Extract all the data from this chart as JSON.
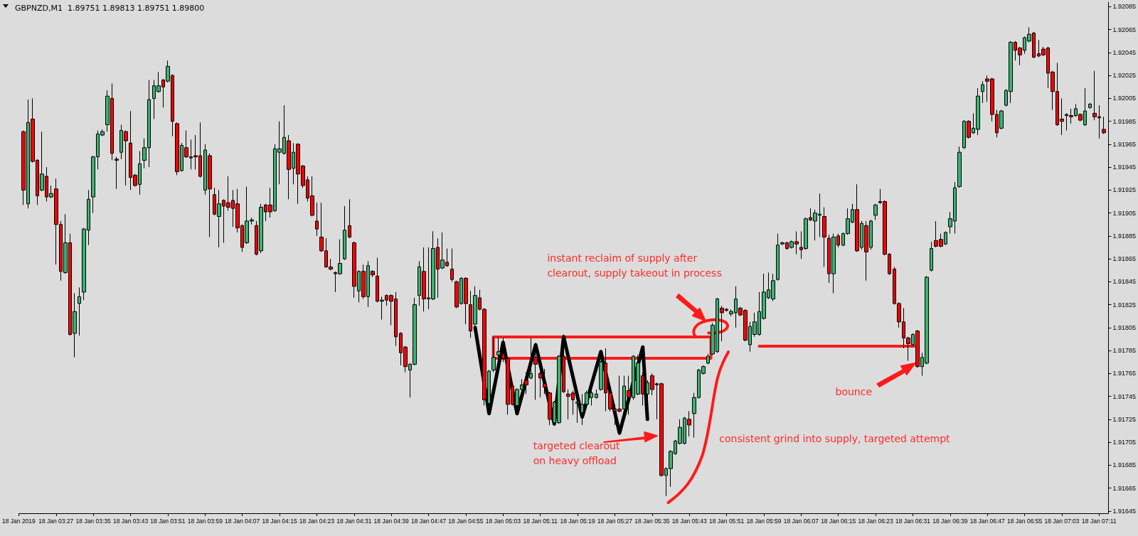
{
  "chart_data": {
    "type": "candlestick",
    "title": "GBPNZD,M1  1.89751 1.89813 1.89751 1.89800",
    "colors": [
      "#ff0000",
      "#3cb371",
      "#ff0000",
      "#ff0000",
      "#3cb371",
      "#ff0000",
      "#3cb371",
      "#ff0000",
      "#ff0000",
      "#3cb371",
      "#ff0000",
      "#3cb371",
      "#3cb371",
      "#3cb371",
      "#3cb371",
      "#3cb371",
      "#3cb371",
      "#3cb371",
      "#3cb371",
      "#ff0000",
      "#ff0000",
      "#3cb371",
      "#ff0000",
      "#ff0000",
      "#ff0000",
      "#3cb371",
      "#3cb371",
      "#3cb371",
      "#3cb371",
      "#3cb371",
      "#ff0000",
      "#3cb371",
      "#ff0000",
      "#ff0000",
      "#3cb371",
      "#ff0000",
      "#ff0000",
      "#ff0000",
      "#ff0000",
      "#3cb371",
      "#ff0000",
      "#ff0000",
      "#3cb371",
      "#ff0000",
      "#ff0000",
      "#ff0000",
      "#ff0000",
      "#ff0000",
      "#3cb371",
      "#3cb371",
      "#ff0000",
      "#3cb371",
      "#ff0000",
      "#ff0000",
      "#3cb371",
      "#3cb371",
      "#3cb371",
      "#ff0000",
      "#3cb371",
      "#ff0000",
      "#ff0000",
      "#ff0000",
      "#ff0000",
      "#ff0000",
      "#ff0000",
      "#ff0000",
      "#ff0000",
      "#ff0000",
      "#3cb371",
      "#3cb371",
      "#ff0000",
      "#ff0000",
      "#3cb371",
      "#ff0000",
      "#3cb371",
      "#ff0000",
      "#ff0000",
      "#3cb371",
      "#ff0000",
      "#ff0000",
      "#ff0000",
      "#ff0000",
      "#ff0000",
      "#3cb371",
      "#3cb371",
      "#3cb371",
      "#ff0000",
      "#3cb371",
      "#3cb371",
      "#ff0000",
      "#3cb371",
      "#ff0000",
      "#ff0000",
      "#ff0000",
      "#3cb371",
      "#ff0000",
      "#ff0000",
      "#3cb371",
      "#ff0000",
      "#ff0000",
      "#3cb371",
      "#3cb371",
      "#3cb371",
      "#ff0000",
      "#ff0000",
      "#ff0000",
      "#3cb371",
      "#3cb371",
      "#ff0000",
      "#3cb371",
      "#ff0000",
      "#ff0000",
      "#ff0000",
      "#ff0000",
      "#3cb371",
      "#3cb371",
      "#ff0000",
      "#ff0000",
      "#ff0000",
      "#3cb371",
      "#3cb371",
      "#3cb371",
      "#3cb371",
      "#3cb371",
      "#3cb371",
      "#ff0000",
      "#ff0000",
      "#ff0000",
      "#ff0000",
      "#3cb371",
      "#ff0000",
      "#3cb371",
      "#3cb371",
      "#ff0000",
      "#3cb371",
      "#ff0000",
      "#ff0000",
      "#ff0000",
      "#3cb371",
      "#3cb371",
      "#3cb371",
      "#3cb371",
      "#3cb371",
      "#ff0000",
      "#3cb371",
      "#3cb371",
      "#3cb371",
      "#3cb371",
      "#3cb371",
      "#3cb371",
      "#ff0000",
      "#ff0000",
      "#3cb371",
      "#3cb371",
      "#ff0000",
      "#ff0000",
      "#3cb371",
      "#3cb371",
      "#3cb371",
      "#3cb371",
      "#3cb371",
      "#3cb371",
      "#3cb371",
      "#3cb371",
      "#ff0000",
      "#3cb371",
      "#ff0000",
      "#ff0000",
      "#3cb371",
      "#ff0000",
      "#3cb371",
      "#3cb371",
      "#ff0000",
      "#ff0000",
      "#3cb371",
      "#ff0000",
      "#3cb371",
      "#3cb371",
      "#3cb371",
      "#ff0000",
      "#3cb371",
      "#ff0000",
      "#3cb371",
      "#3cb371",
      "#ff0000",
      "#ff0000",
      "#ff0000",
      "#ff0000",
      "#ff0000",
      "#ff0000",
      "#ff0000",
      "#3cb371",
      "#ff0000",
      "#3cb371",
      "#3cb371",
      "#3cb371",
      "#ff0000",
      "#ff0000",
      "#3cb371",
      "#3cb371",
      "#3cb371",
      "#3cb371",
      "#3cb371",
      "#ff0000",
      "#3cb371",
      "#3cb371",
      "#3cb371",
      "#ff0000",
      "#ff0000",
      "#ff0000",
      "#3cb371",
      "#3cb371",
      "#3cb371",
      "#ff0000",
      "#ff0000",
      "#3cb371",
      "#3cb371",
      "#ff0000",
      "#ff0000",
      "#ff0000",
      "#ff0000",
      "#ff0000",
      "#ff0000",
      "#ff0000",
      "#ff0000",
      "#ff0000",
      "#3cb371",
      "#ff0000",
      "#3cb371",
      "#3cb371",
      "#ff0000",
      "#ff0000",
      "#ff0000"
    ],
    "xlim": [
      "2019-01-18T03:19",
      "2019-01-18T07:13"
    ],
    "ylim": [
      1.91643,
      1.92089
    ],
    "yticks": [
      1.92085,
      1.92065,
      1.92045,
      1.92025,
      1.92005,
      1.91985,
      1.91965,
      1.91945,
      1.91925,
      1.91905,
      1.91885,
      1.91865,
      1.91845,
      1.91825,
      1.91805,
      1.91785,
      1.91765,
      1.91745,
      1.91725,
      1.91705,
      1.91685,
      1.91665,
      1.91645
    ],
    "xticks": [
      {
        "value": "2019-01-18T03:19",
        "label": "18 Jan 2019"
      },
      {
        "value": "2019-01-18T03:27",
        "label": "18 Jan 03:27"
      },
      {
        "value": "2019-01-18T03:35",
        "label": "18 Jan 03:35"
      },
      {
        "value": "2019-01-18T03:43",
        "label": "18 Jan 03:43"
      },
      {
        "value": "2019-01-18T03:51",
        "label": "18 Jan 03:51"
      },
      {
        "value": "2019-01-18T03:59",
        "label": "18 Jan 03:59"
      },
      {
        "value": "2019-01-18T04:07",
        "label": "18 Jan 04:07"
      },
      {
        "value": "2019-01-18T04:15",
        "label": "18 Jan 04:15"
      },
      {
        "value": "2019-01-18T04:23",
        "label": "18 Jan 04:23"
      },
      {
        "value": "2019-01-18T04:31",
        "label": "18 Jan 04:31"
      },
      {
        "value": "2019-01-18T04:39",
        "label": "18 Jan 04:39"
      },
      {
        "value": "2019-01-18T04:47",
        "label": "18 Jan 04:47"
      },
      {
        "value": "2019-01-18T04:55",
        "label": "18 Jan 04:55"
      },
      {
        "value": "2019-01-18T05:03",
        "label": "18 Jan 05:03"
      },
      {
        "value": "2019-01-18T05:11",
        "label": "18 Jan 05:11"
      },
      {
        "value": "2019-01-18T05:19",
        "label": "18 Jan 05:19"
      },
      {
        "value": "2019-01-18T05:27",
        "label": "18 Jan 05:27"
      },
      {
        "value": "2019-01-18T05:35",
        "label": "18 Jan 05:35"
      },
      {
        "value": "2019-01-18T05:43",
        "label": "18 Jan 05:43"
      },
      {
        "value": "2019-01-18T05:51",
        "label": "18 Jan 05:51"
      },
      {
        "value": "2019-01-18T05:59",
        "label": "18 Jan 05:59"
      },
      {
        "value": "2019-01-18T06:07",
        "label": "18 Jan 06:07"
      },
      {
        "value": "2019-01-18T06:15",
        "label": "18 Jan 06:15"
      },
      {
        "value": "2019-01-18T06:23",
        "label": "18 Jan 06:23"
      },
      {
        "value": "2019-01-18T06:31",
        "label": "18 Jan 06:31"
      },
      {
        "value": "2019-01-18T06:39",
        "label": "18 Jan 06:39"
      },
      {
        "value": "2019-01-18T06:47",
        "label": "18 Jan 06:47"
      },
      {
        "value": "2019-01-18T06:55",
        "label": "18 Jan 06:55"
      },
      {
        "value": "2019-01-18T07:03",
        "label": "18 Jan 07:03"
      },
      {
        "value": "2019-01-18T07:11",
        "label": "18 Jan 07:11"
      }
    ],
    "series": [
      {
        "type": "line",
        "color": "#000000",
        "line_style": "solid",
        "x": [
          "2019-01-18T04:57",
          "2019-01-18T05:00",
          "2019-01-18T05:03",
          "2019-01-18T05:06",
          "2019-01-18T05:10",
          "2019-01-18T05:14",
          "2019-01-18T05:16",
          "2019-01-18T05:20",
          "2019-01-18T05:24",
          "2019-01-18T05:28",
          "2019-01-18T05:33",
          "2019-01-18T05:34"
        ],
        "values": [
          1.91805,
          1.9173,
          1.91792,
          1.9173,
          1.9179,
          1.91721,
          1.91797,
          1.91727,
          1.91784,
          1.91713,
          1.91788,
          1.91725
        ]
      }
    ],
    "annotations": [
      "instant reclaim of supply after\nclearout, supply takeout in process",
      "targeted clearout\non heavy offload",
      "consistent grind into supply, targeted attempt",
      "bounce"
    ],
    "x": [
      "2019-01-18T03:20",
      "2019-01-18T03:21",
      "2019-01-18T03:22",
      "2019-01-18T03:23",
      "2019-01-18T03:24",
      "2019-01-18T03:25",
      "2019-01-18T03:26",
      "2019-01-18T03:27",
      "2019-01-18T03:28",
      "2019-01-18T03:29",
      "2019-01-18T03:30",
      "2019-01-18T03:31",
      "2019-01-18T03:32",
      "2019-01-18T03:33",
      "2019-01-18T03:34",
      "2019-01-18T03:35",
      "2019-01-18T03:36",
      "2019-01-18T03:37",
      "2019-01-18T03:38",
      "2019-01-18T03:39",
      "2019-01-18T03:40",
      "2019-01-18T03:41",
      "2019-01-18T03:42",
      "2019-01-18T03:43",
      "2019-01-18T03:44",
      "2019-01-18T03:45",
      "2019-01-18T03:46",
      "2019-01-18T03:47",
      "2019-01-18T03:48",
      "2019-01-18T03:49",
      "2019-01-18T03:50",
      "2019-01-18T03:51",
      "2019-01-18T03:52",
      "2019-01-18T03:53",
      "2019-01-18T03:54",
      "2019-01-18T03:55",
      "2019-01-18T03:56",
      "2019-01-18T03:57",
      "2019-01-18T03:58",
      "2019-01-18T03:59",
      "2019-01-18T04:00",
      "2019-01-18T04:01",
      "2019-01-18T04:02",
      "2019-01-18T04:03",
      "2019-01-18T04:04",
      "2019-01-18T04:05",
      "2019-01-18T04:06",
      "2019-01-18T04:07",
      "2019-01-18T04:08",
      "2019-01-18T04:09",
      "2019-01-18T04:10",
      "2019-01-18T04:11",
      "2019-01-18T04:12",
      "2019-01-18T04:13",
      "2019-01-18T04:14",
      "2019-01-18T04:15",
      "2019-01-18T04:16",
      "2019-01-18T04:17",
      "2019-01-18T04:18",
      "2019-01-18T04:19",
      "2019-01-18T04:20",
      "2019-01-18T04:21",
      "2019-01-18T04:22",
      "2019-01-18T04:23",
      "2019-01-18T04:24",
      "2019-01-18T04:25",
      "2019-01-18T04:26",
      "2019-01-18T04:27",
      "2019-01-18T04:28",
      "2019-01-18T04:29",
      "2019-01-18T04:30",
      "2019-01-18T04:31",
      "2019-01-18T04:32",
      "2019-01-18T04:33",
      "2019-01-18T04:34",
      "2019-01-18T04:35",
      "2019-01-18T04:36",
      "2019-01-18T04:37",
      "2019-01-18T04:38",
      "2019-01-18T04:39",
      "2019-01-18T04:40",
      "2019-01-18T04:41",
      "2019-01-18T04:42",
      "2019-01-18T04:43",
      "2019-01-18T04:44",
      "2019-01-18T04:45",
      "2019-01-18T04:46",
      "2019-01-18T04:47",
      "2019-01-18T04:48",
      "2019-01-18T04:49",
      "2019-01-18T04:50",
      "2019-01-18T04:51",
      "2019-01-18T04:52",
      "2019-01-18T04:53",
      "2019-01-18T04:54",
      "2019-01-18T04:55",
      "2019-01-18T04:56",
      "2019-01-18T04:57",
      "2019-01-18T04:58",
      "2019-01-18T04:59",
      "2019-01-18T05:00",
      "2019-01-18T05:01",
      "2019-01-18T05:02",
      "2019-01-18T05:03",
      "2019-01-18T05:04",
      "2019-01-18T05:05",
      "2019-01-18T05:06",
      "2019-01-18T05:07",
      "2019-01-18T05:08",
      "2019-01-18T05:09",
      "2019-01-18T05:10",
      "2019-01-18T05:11",
      "2019-01-18T05:12",
      "2019-01-18T05:13",
      "2019-01-18T05:14",
      "2019-01-18T05:15",
      "2019-01-18T05:16",
      "2019-01-18T05:17",
      "2019-01-18T05:18",
      "2019-01-18T05:19",
      "2019-01-18T05:20",
      "2019-01-18T05:21",
      "2019-01-18T05:22",
      "2019-01-18T05:23",
      "2019-01-18T05:24",
      "2019-01-18T05:25",
      "2019-01-18T05:26",
      "2019-01-18T05:27",
      "2019-01-18T05:28",
      "2019-01-18T05:29",
      "2019-01-18T05:30",
      "2019-01-18T05:31",
      "2019-01-18T05:32",
      "2019-01-18T05:33",
      "2019-01-18T05:34",
      "2019-01-18T05:35",
      "2019-01-18T05:36",
      "2019-01-18T05:37",
      "2019-01-18T05:38",
      "2019-01-18T05:39",
      "2019-01-18T05:40",
      "2019-01-18T05:41",
      "2019-01-18T05:42",
      "2019-01-18T05:43",
      "2019-01-18T05:44",
      "2019-01-18T05:45",
      "2019-01-18T05:46",
      "2019-01-18T05:47",
      "2019-01-18T05:48",
      "2019-01-18T05:49",
      "2019-01-18T05:50",
      "2019-01-18T05:51",
      "2019-01-18T05:52",
      "2019-01-18T05:53",
      "2019-01-18T05:54",
      "2019-01-18T05:55",
      "2019-01-18T05:56",
      "2019-01-18T05:57",
      "2019-01-18T05:58",
      "2019-01-18T05:59",
      "2019-01-18T06:00",
      "2019-01-18T06:01",
      "2019-01-18T06:02",
      "2019-01-18T06:03",
      "2019-01-18T06:04",
      "2019-01-18T06:05",
      "2019-01-18T06:06",
      "2019-01-18T06:07",
      "2019-01-18T06:08",
      "2019-01-18T06:09",
      "2019-01-18T06:10",
      "2019-01-18T06:11",
      "2019-01-18T06:12",
      "2019-01-18T06:13",
      "2019-01-18T06:14",
      "2019-01-18T06:15",
      "2019-01-18T06:16",
      "2019-01-18T06:17",
      "2019-01-18T06:18",
      "2019-01-18T06:19",
      "2019-01-18T06:20",
      "2019-01-18T06:21",
      "2019-01-18T06:22",
      "2019-01-18T06:23",
      "2019-01-18T06:24",
      "2019-01-18T06:25",
      "2019-01-18T06:26",
      "2019-01-18T06:27",
      "2019-01-18T06:28",
      "2019-01-18T06:29",
      "2019-01-18T06:30",
      "2019-01-18T06:31",
      "2019-01-18T06:32",
      "2019-01-18T06:33",
      "2019-01-18T06:34",
      "2019-01-18T06:35",
      "2019-01-18T06:36",
      "2019-01-18T06:37",
      "2019-01-18T06:38",
      "2019-01-18T06:39",
      "2019-01-18T06:40",
      "2019-01-18T06:41",
      "2019-01-18T06:42",
      "2019-01-18T06:43",
      "2019-01-18T06:44",
      "2019-01-18T06:45",
      "2019-01-18T06:46",
      "2019-01-18T06:47",
      "2019-01-18T06:48",
      "2019-01-18T06:49",
      "2019-01-18T06:50",
      "2019-01-18T06:51",
      "2019-01-18T06:52",
      "2019-01-18T06:53",
      "2019-01-18T06:54",
      "2019-01-18T06:55",
      "2019-01-18T06:56",
      "2019-01-18T06:57",
      "2019-01-18T06:58",
      "2019-01-18T06:59",
      "2019-01-18T07:00",
      "2019-01-18T07:01",
      "2019-01-18T07:02",
      "2019-01-18T07:03",
      "2019-01-18T07:04",
      "2019-01-18T07:05",
      "2019-01-18T07:06",
      "2019-01-18T07:07",
      "2019-01-18T07:08",
      "2019-01-18T07:09",
      "2019-01-18T07:10",
      "2019-01-18T07:11",
      "2019-01-18T07:12"
    ],
    "ohlc": [
      [
        1.91976,
        1.91977,
        1.91912,
        1.91925
      ],
      [
        1.91913,
        1.92004,
        1.91909,
        1.91984
      ],
      [
        1.91987,
        1.92005,
        1.91949,
        1.9195
      ],
      [
        1.91951,
        1.91952,
        1.91912,
        1.9192
      ],
      [
        1.91925,
        1.91976,
        1.91924,
        1.91939
      ],
      [
        1.91937,
        1.91945,
        1.91915,
        1.91919
      ],
      [
        1.91919,
        1.91929,
        1.91918,
        1.91922
      ],
      [
        1.91926,
        1.91935,
        1.9186,
        1.91895
      ],
      [
        1.91895,
        1.91898,
        1.91846,
        1.91854
      ],
      [
        1.91853,
        1.91904,
        1.91852,
        1.91879
      ],
      [
        1.91879,
        1.91887,
        1.91798,
        1.91799
      ],
      [
        1.918,
        1.91835,
        1.91779,
        1.91819
      ],
      [
        1.91826,
        1.9184,
        1.91798,
        1.91832
      ],
      [
        1.91836,
        1.91892,
        1.91829,
        1.91891
      ],
      [
        1.9189,
        1.91925,
        1.91877,
        1.91917
      ],
      [
        1.91919,
        1.91955,
        1.91905,
        1.91954
      ],
      [
        1.91954,
        1.91977,
        1.91943,
        1.91974
      ],
      [
        1.91973,
        1.91978,
        1.91972,
        1.91976
      ],
      [
        1.91982,
        1.92012,
        1.91976,
        1.92007
      ],
      [
        1.92005,
        1.92018,
        1.91951,
        1.91957
      ],
      [
        1.91952,
        1.91954,
        1.91926,
        1.91951
      ],
      [
        1.91958,
        1.91982,
        1.91952,
        1.91977
      ],
      [
        1.91976,
        1.91977,
        1.91929,
        1.91968
      ],
      [
        1.91966,
        1.91994,
        1.91925,
        1.91936
      ],
      [
        1.91938,
        1.91939,
        1.91928,
        1.91929
      ],
      [
        1.9193,
        1.91959,
        1.91921,
        1.91948
      ],
      [
        1.91951,
        1.9197,
        1.91944,
        1.91962
      ],
      [
        1.91962,
        1.92021,
        1.91945,
        1.92004
      ],
      [
        1.92005,
        1.92021,
        1.91987,
        1.92016
      ],
      [
        1.92011,
        1.92028,
        1.9201,
        1.92016
      ],
      [
        1.92021,
        1.92022,
        1.91997,
        1.92015
      ],
      [
        1.9202,
        1.92038,
        1.92019,
        1.92033
      ],
      [
        1.92025,
        1.92026,
        1.91972,
        1.91985
      ],
      [
        1.91983,
        1.91984,
        1.91938,
        1.91941
      ],
      [
        1.91942,
        1.91966,
        1.91941,
        1.91964
      ],
      [
        1.91962,
        1.91977,
        1.91953,
        1.91954
      ],
      [
        1.91954,
        1.91969,
        1.91943,
        1.91953
      ],
      [
        1.91955,
        1.91973,
        1.91943,
        1.91954
      ],
      [
        1.91955,
        1.91984,
        1.91936,
        1.91937
      ],
      [
        1.91925,
        1.91965,
        1.91921,
        1.9196
      ],
      [
        1.91955,
        1.91957,
        1.91884,
        1.91926
      ],
      [
        1.91921,
        1.91927,
        1.91903,
        1.91904
      ],
      [
        1.91902,
        1.91925,
        1.91875,
        1.91913
      ],
      [
        1.91916,
        1.91917,
        1.91879,
        1.91911
      ],
      [
        1.91914,
        1.91937,
        1.91907,
        1.9191
      ],
      [
        1.91916,
        1.91925,
        1.91893,
        1.91909
      ],
      [
        1.91913,
        1.91926,
        1.91888,
        1.91892
      ],
      [
        1.91894,
        1.91895,
        1.91871,
        1.91875
      ],
      [
        1.91879,
        1.91928,
        1.91878,
        1.91898
      ],
      [
        1.91898,
        1.91901,
        1.91895,
        1.91899
      ],
      [
        1.91894,
        1.91898,
        1.91868,
        1.91869
      ],
      [
        1.91872,
        1.91913,
        1.9187,
        1.9191
      ],
      [
        1.91912,
        1.91913,
        1.91898,
        1.91906
      ],
      [
        1.91912,
        1.91927,
        1.91901,
        1.91906
      ],
      [
        1.91907,
        1.91965,
        1.91906,
        1.91961
      ],
      [
        1.91958,
        1.91985,
        1.9193,
        1.91961
      ],
      [
        1.91957,
        1.91999,
        1.91956,
        1.91971
      ],
      [
        1.91968,
        1.91973,
        1.91917,
        1.91943
      ],
      [
        1.91944,
        1.91966,
        1.9193,
        1.91958
      ],
      [
        1.91965,
        1.91966,
        1.91913,
        1.91939
      ],
      [
        1.91946,
        1.91947,
        1.91927,
        1.91929
      ],
      [
        1.91934,
        1.91937,
        1.91915,
        1.91918
      ],
      [
        1.9192,
        1.91937,
        1.91902,
        1.91903
      ],
      [
        1.91898,
        1.91914,
        1.91885,
        1.91891
      ],
      [
        1.91884,
        1.91914,
        1.91871,
        1.91872
      ],
      [
        1.91872,
        1.91883,
        1.91857,
        1.91858
      ],
      [
        1.91858,
        1.91865,
        1.91855,
        1.91856
      ],
      [
        1.91853,
        1.91854,
        1.91836,
        1.91852
      ],
      [
        1.91852,
        1.91882,
        1.91851,
        1.91861
      ],
      [
        1.91865,
        1.91911,
        1.91864,
        1.9189
      ],
      [
        1.91894,
        1.91917,
        1.91883,
        1.91884
      ],
      [
        1.91879,
        1.9188,
        1.91831,
        1.91841
      ],
      [
        1.91837,
        1.91855,
        1.91827,
        1.91854
      ],
      [
        1.91854,
        1.9186,
        1.9183,
        1.91832
      ],
      [
        1.91832,
        1.91863,
        1.91823,
        1.91859
      ],
      [
        1.91854,
        1.91855,
        1.91849,
        1.91851
      ],
      [
        1.9185,
        1.91866,
        1.91827,
        1.91828
      ],
      [
        1.91828,
        1.91832,
        1.91812,
        1.91829
      ],
      [
        1.91833,
        1.91834,
        1.91824,
        1.91829
      ],
      [
        1.91833,
        1.91834,
        1.91807,
        1.91828
      ],
      [
        1.9183,
        1.91836,
        1.91789,
        1.91797
      ],
      [
        1.918,
        1.91801,
        1.91772,
        1.91783
      ],
      [
        1.91788,
        1.91789,
        1.91766,
        1.91771
      ],
      [
        1.91768,
        1.91774,
        1.91744,
        1.91773
      ],
      [
        1.91773,
        1.91831,
        1.91772,
        1.91825
      ],
      [
        1.91833,
        1.91863,
        1.91824,
        1.91858
      ],
      [
        1.91854,
        1.91875,
        1.91819,
        1.9183
      ],
      [
        1.9183,
        1.91875,
        1.91821,
        1.91831
      ],
      [
        1.9183,
        1.91889,
        1.91829,
        1.91874
      ],
      [
        1.91875,
        1.91883,
        1.91831,
        1.91856
      ],
      [
        1.91857,
        1.91888,
        1.91856,
        1.91864
      ],
      [
        1.91862,
        1.91874,
        1.91858,
        1.91859
      ],
      [
        1.91856,
        1.91874,
        1.91845,
        1.91847
      ],
      [
        1.91845,
        1.91846,
        1.91822,
        1.91823
      ],
      [
        1.91826,
        1.91849,
        1.91825,
        1.91848
      ],
      [
        1.91848,
        1.91849,
        1.91808,
        1.91826
      ],
      [
        1.91825,
        1.91837,
        1.91796,
        1.91802
      ],
      [
        1.91808,
        1.91841,
        1.91807,
        1.91833
      ],
      [
        1.91831,
        1.91838,
        1.9182,
        1.91821
      ],
      [
        1.91821,
        1.91822,
        1.91737,
        1.91742
      ],
      [
        1.91739,
        1.91768,
        1.91737,
        1.91767
      ],
      [
        1.91768,
        1.91797,
        1.91766,
        1.91779
      ],
      [
        1.91781,
        1.91797,
        1.91779,
        1.91784
      ],
      [
        1.91782,
        1.91796,
        1.91775,
        1.91778
      ],
      [
        1.91778,
        1.91779,
        1.91729,
        1.91738
      ],
      [
        1.91754,
        1.91755,
        1.91737,
        1.91738
      ],
      [
        1.91737,
        1.91752,
        1.91735,
        1.91751
      ],
      [
        1.91751,
        1.9176,
        1.91747,
        1.91755
      ],
      [
        1.91759,
        1.91766,
        1.91747,
        1.91755
      ],
      [
        1.91761,
        1.91796,
        1.9176,
        1.91765
      ],
      [
        1.91779,
        1.91784,
        1.91742,
        1.91773
      ],
      [
        1.91765,
        1.91775,
        1.91744,
        1.91761
      ],
      [
        1.91756,
        1.91769,
        1.91747,
        1.91753
      ],
      [
        1.91748,
        1.91749,
        1.9172,
        1.91725
      ],
      [
        1.91722,
        1.91741,
        1.91721,
        1.9174
      ],
      [
        1.91722,
        1.91781,
        1.91721,
        1.9178
      ],
      [
        1.9178,
        1.91799,
        1.91748,
        1.91749
      ],
      [
        1.91747,
        1.91751,
        1.91725,
        1.91745
      ],
      [
        1.91748,
        1.9175,
        1.91729,
        1.91742
      ],
      [
        1.91739,
        1.91744,
        1.91722,
        1.9174
      ],
      [
        1.91731,
        1.91747,
        1.9172,
        1.91738
      ],
      [
        1.91738,
        1.9175,
        1.91736,
        1.91748
      ],
      [
        1.91744,
        1.91751,
        1.91737,
        1.91748
      ],
      [
        1.91744,
        1.91751,
        1.91743,
        1.91747
      ],
      [
        1.91751,
        1.91776,
        1.9175,
        1.91775
      ],
      [
        1.91774,
        1.91787,
        1.91732,
        1.91748
      ],
      [
        1.91748,
        1.91751,
        1.91732,
        1.91734
      ],
      [
        1.91734,
        1.91738,
        1.9172,
        1.91732
      ],
      [
        1.91734,
        1.91763,
        1.91731,
        1.91732
      ],
      [
        1.91734,
        1.91763,
        1.91729,
        1.91754
      ],
      [
        1.9175,
        1.91763,
        1.91729,
        1.91744
      ],
      [
        1.91744,
        1.91781,
        1.91742,
        1.9178
      ],
      [
        1.91747,
        1.91781,
        1.91746,
        1.91774
      ],
      [
        1.91763,
        1.91766,
        1.91737,
        1.91747
      ],
      [
        1.91747,
        1.91759,
        1.91738,
        1.91757
      ],
      [
        1.91763,
        1.91765,
        1.91746,
        1.91751
      ],
      [
        1.91756,
        1.91757,
        1.91725,
        1.91755
      ],
      [
        1.91756,
        1.91757,
        1.91675,
        1.91676
      ],
      [
        1.91676,
        1.91683,
        1.91658,
        1.91682
      ],
      [
        1.91682,
        1.91698,
        1.91666,
        1.91697
      ],
      [
        1.91695,
        1.91707,
        1.91694,
        1.91706
      ],
      [
        1.91704,
        1.91725,
        1.91703,
        1.91718
      ],
      [
        1.91704,
        1.91727,
        1.91703,
        1.91726
      ],
      [
        1.91725,
        1.91732,
        1.9171,
        1.9172
      ],
      [
        1.9173,
        1.91748,
        1.91709,
        1.91744
      ],
      [
        1.91744,
        1.91769,
        1.91743,
        1.91768
      ],
      [
        1.91765,
        1.91772,
        1.91764,
        1.91771
      ],
      [
        1.91774,
        1.91782,
        1.91773,
        1.9178
      ],
      [
        1.91782,
        1.91809,
        1.91781,
        1.91807
      ],
      [
        1.91784,
        1.91831,
        1.91783,
        1.9183
      ],
      [
        1.91822,
        1.91824,
        1.91793,
        1.91818
      ],
      [
        1.91821,
        1.91822,
        1.91819,
        1.9182
      ],
      [
        1.91817,
        1.91821,
        1.91815,
        1.91819
      ],
      [
        1.91818,
        1.91841,
        1.91805,
        1.9183
      ],
      [
        1.91822,
        1.91823,
        1.91815,
        1.91816
      ],
      [
        1.9182,
        1.91821,
        1.91793,
        1.91794
      ],
      [
        1.9179,
        1.9181,
        1.91784,
        1.91806
      ],
      [
        1.91799,
        1.91818,
        1.91797,
        1.9181
      ],
      [
        1.91799,
        1.91836,
        1.91798,
        1.91819
      ],
      [
        1.91813,
        1.91852,
        1.91812,
        1.91836
      ],
      [
        1.91831,
        1.91853,
        1.9183,
        1.91838
      ],
      [
        1.9183,
        1.91852,
        1.91828,
        1.91846
      ],
      [
        1.91847,
        1.91887,
        1.91846,
        1.91877
      ],
      [
        1.91878,
        1.9188,
        1.91877,
        1.91879
      ],
      [
        1.91879,
        1.9188,
        1.91873,
        1.91874
      ],
      [
        1.91875,
        1.91881,
        1.91874,
        1.9188
      ],
      [
        1.9188,
        1.91889,
        1.91869,
        1.91878
      ],
      [
        1.91875,
        1.91889,
        1.91865,
        1.91873
      ],
      [
        1.91874,
        1.91901,
        1.91873,
        1.919
      ],
      [
        1.91901,
        1.91909,
        1.91898,
        1.91899
      ],
      [
        1.91898,
        1.91908,
        1.91881,
        1.91905
      ],
      [
        1.91903,
        1.91922,
        1.91884,
        1.91904
      ],
      [
        1.91902,
        1.9191,
        1.91858,
        1.91884
      ],
      [
        1.91883,
        1.91886,
        1.91844,
        1.91852
      ],
      [
        1.91852,
        1.91887,
        1.91835,
        1.91884
      ],
      [
        1.91885,
        1.91887,
        1.91875,
        1.91877
      ],
      [
        1.91877,
        1.91888,
        1.91876,
        1.91887
      ],
      [
        1.91887,
        1.91909,
        1.91886,
        1.919
      ],
      [
        1.91897,
        1.91913,
        1.91896,
        1.91908
      ],
      [
        1.91908,
        1.9193,
        1.91871,
        1.91872
      ],
      [
        1.91875,
        1.91898,
        1.91873,
        1.91896
      ],
      [
        1.91894,
        1.91898,
        1.91846,
        1.91871
      ],
      [
        1.91875,
        1.91899,
        1.91873,
        1.91898
      ],
      [
        1.91903,
        1.91913,
        1.91899,
        1.91912
      ],
      [
        1.91915,
        1.91926,
        1.91913,
        1.91914
      ],
      [
        1.91915,
        1.91916,
        1.91868,
        1.91869
      ],
      [
        1.91869,
        1.9187,
        1.91851,
        1.91852
      ],
      [
        1.91856,
        1.91858,
        1.91825,
        1.91826
      ],
      [
        1.91826,
        1.91827,
        1.91805,
        1.9181
      ],
      [
        1.9181,
        1.91822,
        1.91787,
        1.91796
      ],
      [
        1.91796,
        1.91797,
        1.91776,
        1.91791
      ],
      [
        1.9179,
        1.918,
        1.91789,
        1.91799
      ],
      [
        1.91802,
        1.91803,
        1.9177,
        1.91771
      ],
      [
        1.91771,
        1.91783,
        1.91763,
        1.91779
      ],
      [
        1.91774,
        1.9185,
        1.91773,
        1.91849
      ],
      [
        1.91855,
        1.9188,
        1.91854,
        1.91874
      ],
      [
        1.91881,
        1.91898,
        1.91875,
        1.91876
      ],
      [
        1.91882,
        1.91887,
        1.91875,
        1.91876
      ],
      [
        1.91878,
        1.91889,
        1.91877,
        1.91888
      ],
      [
        1.91893,
        1.91906,
        1.91887,
        1.919
      ],
      [
        1.91898,
        1.91932,
        1.91887,
        1.91927
      ],
      [
        1.91928,
        1.91963,
        1.91927,
        1.91958
      ],
      [
        1.91962,
        1.91986,
        1.91961,
        1.91985
      ],
      [
        1.91985,
        1.91986,
        1.9197,
        1.91971
      ],
      [
        1.91975,
        1.91992,
        1.91974,
        1.91979
      ],
      [
        1.91978,
        1.92014,
        1.91973,
        1.92007
      ],
      [
        1.92011,
        1.9202,
        1.92001,
        1.92017
      ],
      [
        1.92022,
        1.92025,
        1.92002,
        1.9202
      ],
      [
        1.92022,
        1.92023,
        1.91985,
        1.91991
      ],
      [
        1.91991,
        1.91995,
        1.91971,
        1.91975
      ],
      [
        1.91979,
        1.91995,
        1.91978,
        1.91994
      ],
      [
        1.91999,
        1.92013,
        1.91998,
        1.92012
      ],
      [
        1.92011,
        1.92055,
        1.92001,
        1.92054
      ],
      [
        1.92054,
        1.92055,
        1.92038,
        1.92047
      ],
      [
        1.92049,
        1.9205,
        1.92034,
        1.92043
      ],
      [
        1.92047,
        1.92059,
        1.92044,
        1.92058
      ],
      [
        1.92055,
        1.92067,
        1.92054,
        1.92061
      ],
      [
        1.92062,
        1.92063,
        1.9204,
        1.92041
      ],
      [
        1.92044,
        1.92056,
        1.92041,
        1.92042
      ],
      [
        1.92048,
        1.9205,
        1.92042,
        1.92043
      ],
      [
        1.92049,
        1.9205,
        1.92014,
        1.92027
      ],
      [
        1.92028,
        1.92029,
        1.91995,
        1.92011
      ],
      [
        1.92011,
        1.92036,
        1.91981,
        1.91982
      ],
      [
        1.91987,
        1.92005,
        1.91973,
        1.91985
      ],
      [
        1.91991,
        1.91992,
        1.91977,
        1.9199
      ],
      [
        1.9199,
        1.91996,
        1.91983,
        1.91989
      ],
      [
        1.9199,
        1.92,
        1.91989,
        1.91996
      ],
      [
        1.91991,
        1.91992,
        1.91985,
        1.91986
      ],
      [
        1.91982,
        1.92014,
        1.91981,
        1.91994
      ],
      [
        1.91997,
        1.92001,
        1.91996,
        1.92
      ],
      [
        1.91992,
        1.92029,
        1.91986,
        1.91989
      ],
      [
        1.91989,
        1.91999,
        1.9197,
        1.91988
      ],
      [
        1.91978,
        1.91989,
        1.91974,
        1.91975
      ]
    ]
  }
}
